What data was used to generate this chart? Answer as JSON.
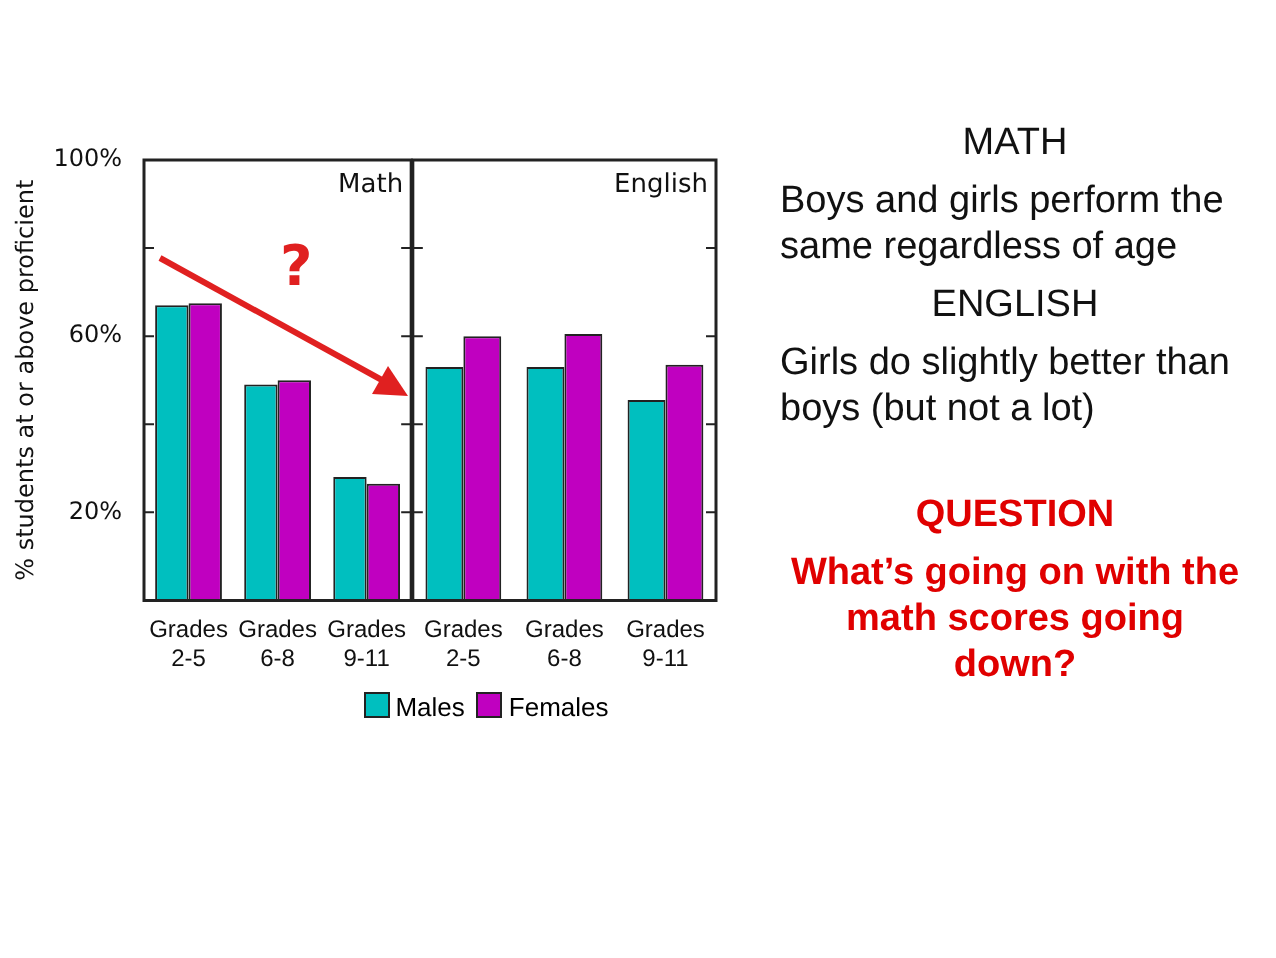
{
  "chart_data": [
    {
      "type": "bar",
      "title": "Math",
      "ylabel": "% students at or above proficient",
      "categories": [
        "Grades 2-5",
        "Grades 6-8",
        "Grades 9-11"
      ],
      "series": [
        {
          "name": "Males",
          "color": "#00bfbf",
          "values": [
            67,
            49,
            28
          ]
        },
        {
          "name": "Females",
          "color": "#c000c0",
          "values": [
            67.5,
            50,
            26.5
          ]
        }
      ],
      "ylim": [
        0,
        100
      ],
      "yticks": [
        {
          "value": 20,
          "label": "20%"
        },
        {
          "value": 40,
          "label": null
        },
        {
          "value": 60,
          "label": "60%"
        },
        {
          "value": 80,
          "label": null
        },
        {
          "value": 100,
          "label": "100%"
        }
      ],
      "grid": false,
      "legend": "bottom",
      "annotations": [
        "?"
      ]
    },
    {
      "type": "bar",
      "title": "English",
      "categories": [
        "Grades 2-5",
        "Grades 6-8",
        "Grades 9-11"
      ],
      "series": [
        {
          "color": "#00bfbf",
          "values": [
            53,
            53,
            45.5
          ]
        },
        {
          "color": "#c000c0",
          "values": [
            60,
            60.5,
            53.5
          ]
        }
      ],
      "ylim": [
        0,
        100
      ],
      "yticks": [
        {
          "value": 20,
          "label": null
        },
        {
          "value": 40,
          "label": null
        },
        {
          "value": 60,
          "label": null
        },
        {
          "value": 80,
          "label": null
        },
        {
          "value": 100,
          "label": null
        }
      ],
      "grid": false,
      "legend": false,
      "tick_labels": "x"
    },
    {
      "type": "other",
      "annotations": [
        "MATH",
        "Boys and girls perform the same regardless of age",
        "ENGLISH",
        "Girls do slightly better than boys (but not a lot)",
        "QUESTION",
        "What’s going on with the math scores going down?"
      ]
    }
  ]
}
